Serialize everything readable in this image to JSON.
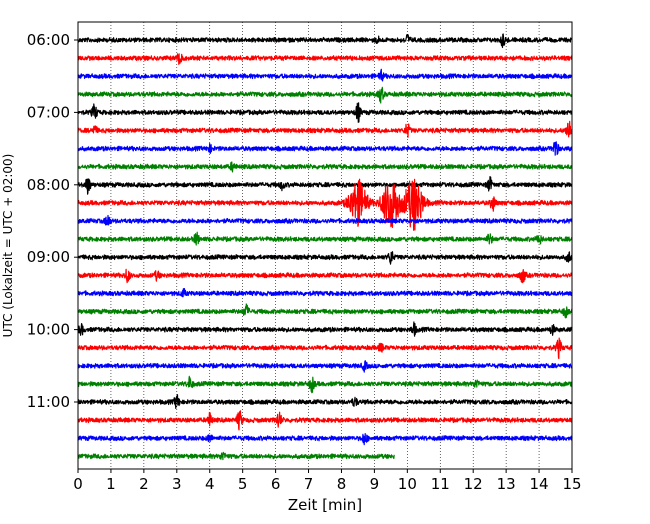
{
  "chart_data": {
    "type": "line",
    "title": "",
    "xlabel": "Zeit  [min]",
    "ylabel": "UTC (Lokalzeit = UTC + 02:00)",
    "xlim": [
      0,
      15
    ],
    "x_ticks": [
      0,
      1,
      2,
      3,
      4,
      5,
      6,
      7,
      8,
      9,
      10,
      11,
      12,
      13,
      14,
      15
    ],
    "grid": "vertical dotted",
    "y_ticks": [
      "06:00",
      "07:00",
      "08:00",
      "09:00",
      "10:00",
      "11:00"
    ],
    "row_interval_minutes": 15,
    "color_cycle": [
      "#000000",
      "#ff0000",
      "#0000ff",
      "#008000"
    ],
    "rows": [
      {
        "start": "06:00",
        "color": "#000000",
        "end_min": 15,
        "events": [
          [
            10.0,
            0.3
          ],
          [
            12.9,
            0.35
          ],
          [
            9.1,
            0.15
          ]
        ]
      },
      {
        "start": "06:15",
        "color": "#ff0000",
        "end_min": 15,
        "events": [
          [
            3.1,
            0.55
          ]
        ]
      },
      {
        "start": "06:30",
        "color": "#0000ff",
        "end_min": 15,
        "events": [
          [
            9.2,
            0.3
          ]
        ]
      },
      {
        "start": "06:45",
        "color": "#008000",
        "end_min": 15,
        "events": [
          [
            9.2,
            0.45
          ]
        ]
      },
      {
        "start": "07:00",
        "color": "#000000",
        "end_min": 15,
        "events": [
          [
            0.5,
            0.45
          ],
          [
            8.5,
            0.55
          ]
        ]
      },
      {
        "start": "07:15",
        "color": "#ff0000",
        "end_min": 15,
        "events": [
          [
            10.0,
            0.4
          ],
          [
            14.9,
            0.7
          ],
          [
            0.5,
            0.25
          ]
        ]
      },
      {
        "start": "07:30",
        "color": "#0000ff",
        "end_min": 15,
        "events": [
          [
            14.5,
            0.55
          ],
          [
            4.0,
            0.2
          ]
        ]
      },
      {
        "start": "07:45",
        "color": "#008000",
        "end_min": 15,
        "events": [
          [
            4.7,
            0.25
          ]
        ]
      },
      {
        "start": "08:00",
        "color": "#000000",
        "end_min": 15,
        "events": [
          [
            0.3,
            0.5
          ],
          [
            12.5,
            0.4
          ],
          [
            6.2,
            0.25
          ]
        ]
      },
      {
        "start": "08:15",
        "color": "#ff0000",
        "end_min": 15,
        "events": [
          [
            8.5,
            1.4
          ],
          [
            9.5,
            1.55
          ],
          [
            10.2,
            1.65
          ],
          [
            12.6,
            0.45
          ]
        ]
      },
      {
        "start": "08:30",
        "color": "#0000ff",
        "end_min": 15,
        "events": [
          [
            0.9,
            0.35
          ]
        ]
      },
      {
        "start": "08:45",
        "color": "#008000",
        "end_min": 15,
        "events": [
          [
            3.6,
            0.35
          ],
          [
            12.5,
            0.3
          ],
          [
            14.0,
            0.3
          ]
        ]
      },
      {
        "start": "09:00",
        "color": "#000000",
        "end_min": 15,
        "events": [
          [
            9.5,
            0.4
          ],
          [
            14.9,
            0.3
          ]
        ]
      },
      {
        "start": "09:15",
        "color": "#ff0000",
        "end_min": 15,
        "events": [
          [
            1.5,
            0.4
          ],
          [
            13.5,
            0.45
          ],
          [
            2.4,
            0.25
          ]
        ]
      },
      {
        "start": "09:30",
        "color": "#0000ff",
        "end_min": 15,
        "events": [
          [
            3.2,
            0.2
          ]
        ]
      },
      {
        "start": "09:45",
        "color": "#008000",
        "end_min": 15,
        "events": [
          [
            5.1,
            0.4
          ],
          [
            14.8,
            0.3
          ]
        ]
      },
      {
        "start": "10:00",
        "color": "#000000",
        "end_min": 15,
        "events": [
          [
            0.1,
            0.3
          ],
          [
            10.2,
            0.35
          ],
          [
            14.4,
            0.25
          ]
        ]
      },
      {
        "start": "10:15",
        "color": "#ff0000",
        "end_min": 15,
        "events": [
          [
            14.6,
            0.55
          ],
          [
            9.2,
            0.2
          ]
        ]
      },
      {
        "start": "10:30",
        "color": "#0000ff",
        "end_min": 15,
        "events": [
          [
            8.7,
            0.25
          ]
        ]
      },
      {
        "start": "10:45",
        "color": "#008000",
        "end_min": 15,
        "events": [
          [
            3.4,
            0.4
          ],
          [
            7.1,
            0.45
          ],
          [
            12.1,
            0.25
          ]
        ]
      },
      {
        "start": "11:00",
        "color": "#000000",
        "end_min": 15,
        "events": [
          [
            3.0,
            0.4
          ],
          [
            8.4,
            0.25
          ]
        ]
      },
      {
        "start": "11:15",
        "color": "#ff0000",
        "end_min": 15,
        "events": [
          [
            4.0,
            0.4
          ],
          [
            4.9,
            0.55
          ],
          [
            6.1,
            0.5
          ]
        ]
      },
      {
        "start": "11:30",
        "color": "#0000ff",
        "end_min": 15,
        "events": [
          [
            8.7,
            0.35
          ],
          [
            4.0,
            0.2
          ]
        ]
      },
      {
        "start": "11:45",
        "color": "#008000",
        "end_min": 9.6,
        "events": [
          [
            4.4,
            0.25
          ]
        ]
      }
    ]
  }
}
